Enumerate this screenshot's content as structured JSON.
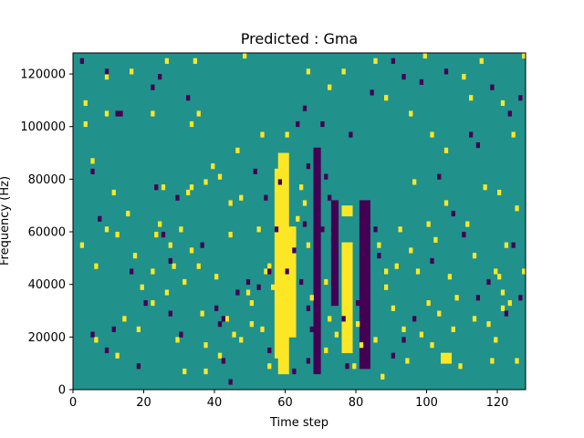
{
  "chart_data": {
    "type": "heatmap",
    "title": "Predicted : Gma",
    "xlabel": "Time step",
    "ylabel": "Frequency (Hz)",
    "xlim": [
      0,
      128
    ],
    "ylim": [
      0,
      128000
    ],
    "xticks": [
      0,
      20,
      40,
      60,
      80,
      100,
      120
    ],
    "yticks": [
      0,
      20000,
      40000,
      60000,
      80000,
      100000,
      120000
    ],
    "colormap": "viridis",
    "colors": {
      "low": "#440154",
      "mid": "#21918c",
      "high": "#fde725"
    },
    "background_value": "mid",
    "grid": false,
    "legend": "none",
    "n_time_steps": 128,
    "n_frequency_bins": 64,
    "freq_bin_hz": 2000,
    "high_band": [
      {
        "t0": 58,
        "t1": 61,
        "f0": 6000,
        "f1": 90000
      },
      {
        "t0": 57,
        "t1": 59,
        "f0": 14000,
        "f1": 84000
      },
      {
        "t0": 61,
        "t1": 63,
        "f0": 20000,
        "f1": 62000
      },
      {
        "t0": 76,
        "t1": 79,
        "f0": 14000,
        "f1": 56000
      },
      {
        "t0": 76,
        "t1": 79,
        "f0": 66000,
        "f1": 70000
      },
      {
        "t0": 104,
        "t1": 107,
        "f0": 10000,
        "f1": 14000
      }
    ],
    "low_band": [
      {
        "t0": 68,
        "t1": 70,
        "f0": 6000,
        "f1": 92000
      },
      {
        "t0": 73,
        "t1": 75,
        "f0": 32000,
        "f1": 72000
      },
      {
        "t0": 81,
        "t1": 84,
        "f0": 8000,
        "f1": 72000
      },
      {
        "t0": 82,
        "t1": 84,
        "f0": 30000,
        "f1": 48000
      }
    ],
    "high_cells": [
      [
        9,
        118000
      ],
      [
        9,
        104000
      ],
      [
        3,
        108000
      ],
      [
        3,
        100000
      ],
      [
        16,
        120000
      ],
      [
        22,
        104000
      ],
      [
        26,
        124000
      ],
      [
        33,
        100000
      ],
      [
        35,
        104000
      ],
      [
        34,
        124000
      ],
      [
        48,
        126000
      ],
      [
        46,
        90000
      ],
      [
        39,
        84000
      ],
      [
        41,
        80000
      ],
      [
        53,
        96000
      ],
      [
        60,
        96000
      ],
      [
        66,
        120000
      ],
      [
        72,
        114000
      ],
      [
        76,
        120000
      ],
      [
        85,
        124000
      ],
      [
        88,
        110000
      ],
      [
        95,
        104000
      ],
      [
        99,
        126000
      ],
      [
        101,
        96000
      ],
      [
        105,
        90000
      ],
      [
        110,
        118000
      ],
      [
        112,
        110000
      ],
      [
        115,
        124000
      ],
      [
        121,
        108000
      ],
      [
        124,
        96000
      ],
      [
        127,
        126000
      ],
      [
        5,
        86000
      ],
      [
        2,
        54000
      ],
      [
        12,
        58000
      ],
      [
        17,
        50000
      ],
      [
        22,
        44000
      ],
      [
        24,
        62000
      ],
      [
        27,
        54000
      ],
      [
        31,
        40000
      ],
      [
        33,
        52000
      ],
      [
        36,
        28000
      ],
      [
        40,
        42000
      ],
      [
        44,
        58000
      ],
      [
        47,
        18000
      ],
      [
        49,
        36000
      ],
      [
        50,
        32000
      ],
      [
        53,
        22000
      ],
      [
        55,
        46000
      ],
      [
        56,
        38000
      ],
      [
        50,
        24000
      ],
      [
        12,
        12000
      ],
      [
        14,
        26000
      ],
      [
        18,
        22000
      ],
      [
        22,
        32000
      ],
      [
        26,
        36000
      ],
      [
        29,
        18000
      ],
      [
        31,
        6000
      ],
      [
        37,
        16000
      ],
      [
        41,
        12000
      ],
      [
        37,
        78000
      ],
      [
        33,
        76000
      ],
      [
        44,
        70000
      ],
      [
        47,
        72000
      ],
      [
        52,
        60000
      ],
      [
        54,
        44000
      ],
      [
        64,
        76000
      ],
      [
        66,
        54000
      ],
      [
        67,
        34000
      ],
      [
        71,
        40000
      ],
      [
        72,
        26000
      ],
      [
        86,
        54000
      ],
      [
        88,
        38000
      ],
      [
        90,
        30000
      ],
      [
        93,
        22000
      ],
      [
        95,
        52000
      ],
      [
        97,
        44000
      ],
      [
        100,
        32000
      ],
      [
        103,
        28000
      ],
      [
        106,
        42000
      ],
      [
        108,
        34000
      ],
      [
        111,
        62000
      ],
      [
        113,
        50000
      ],
      [
        117,
        24000
      ],
      [
        119,
        18000
      ],
      [
        121,
        36000
      ],
      [
        123,
        32000
      ],
      [
        125,
        68000
      ],
      [
        127,
        44000
      ],
      [
        116,
        76000
      ],
      [
        120,
        74000
      ],
      [
        122,
        54000
      ],
      [
        105,
        70000
      ],
      [
        100,
        62000
      ],
      [
        96,
        78000
      ],
      [
        92,
        60000
      ],
      [
        88,
        44000
      ],
      [
        85,
        18000
      ],
      [
        79,
        8000
      ],
      [
        74,
        20000
      ],
      [
        71,
        14000
      ],
      [
        91,
        46000
      ],
      [
        102,
        56000
      ],
      [
        119,
        44000
      ],
      [
        120,
        42000
      ],
      [
        121,
        30000
      ],
      [
        125,
        10000
      ],
      [
        6,
        18000
      ],
      [
        6,
        46000
      ],
      [
        9,
        60000
      ],
      [
        11,
        74000
      ],
      [
        15,
        66000
      ],
      [
        19,
        38000
      ],
      [
        23,
        58000
      ],
      [
        25,
        76000
      ],
      [
        28,
        46000
      ],
      [
        30,
        60000
      ],
      [
        32,
        74000
      ],
      [
        35,
        46000
      ],
      [
        37,
        6000
      ],
      [
        43,
        26000
      ],
      [
        45,
        20000
      ],
      [
        55,
        8000
      ],
      [
        57,
        12000
      ],
      [
        62,
        26000
      ],
      [
        63,
        64000
      ],
      [
        65,
        70000
      ],
      [
        80,
        24000
      ],
      [
        81,
        16000
      ],
      [
        87,
        4000
      ],
      [
        94,
        10000
      ],
      [
        98,
        20000
      ],
      [
        101,
        16000
      ],
      [
        107,
        22000
      ],
      [
        109,
        8000
      ],
      [
        113,
        26000
      ],
      [
        118,
        10000
      ]
    ],
    "low_cells": [
      [
        2,
        124000
      ],
      [
        9,
        120000
      ],
      [
        5,
        82000
      ],
      [
        7,
        64000
      ],
      [
        22,
        114000
      ],
      [
        24,
        118000
      ],
      [
        32,
        110000
      ],
      [
        12,
        104000
      ],
      [
        13,
        104000
      ],
      [
        23,
        76000
      ],
      [
        29,
        72000
      ],
      [
        16,
        44000
      ],
      [
        25,
        58000
      ],
      [
        20,
        32000
      ],
      [
        27,
        48000
      ],
      [
        36,
        54000
      ],
      [
        40,
        30000
      ],
      [
        41,
        24000
      ],
      [
        42,
        26000
      ],
      [
        46,
        36000
      ],
      [
        49,
        40000
      ],
      [
        52,
        38000
      ],
      [
        55,
        44000
      ],
      [
        58,
        78000
      ],
      [
        57,
        60000
      ],
      [
        62,
        52000
      ],
      [
        64,
        40000
      ],
      [
        66,
        30000
      ],
      [
        67,
        22000
      ],
      [
        63,
        100000
      ],
      [
        65,
        106000
      ],
      [
        72,
        72000
      ],
      [
        74,
        34000
      ],
      [
        76,
        26000
      ],
      [
        85,
        60000
      ],
      [
        86,
        50000
      ],
      [
        90,
        12000
      ],
      [
        93,
        18000
      ],
      [
        96,
        26000
      ],
      [
        101,
        48000
      ],
      [
        103,
        80000
      ],
      [
        107,
        66000
      ],
      [
        110,
        58000
      ],
      [
        114,
        34000
      ],
      [
        117,
        40000
      ],
      [
        122,
        28000
      ],
      [
        124,
        54000
      ],
      [
        126,
        34000
      ],
      [
        5,
        20000
      ],
      [
        9,
        14000
      ],
      [
        11,
        22000
      ],
      [
        18,
        8000
      ],
      [
        27,
        28000
      ],
      [
        30,
        20000
      ],
      [
        42,
        10000
      ],
      [
        44,
        2000
      ],
      [
        51,
        82000
      ],
      [
        54,
        72000
      ],
      [
        60,
        44000
      ],
      [
        78,
        96000
      ],
      [
        84,
        112000
      ],
      [
        90,
        124000
      ],
      [
        93,
        118000
      ],
      [
        98,
        116000
      ],
      [
        105,
        120000
      ],
      [
        112,
        96000
      ],
      [
        114,
        92000
      ],
      [
        118,
        114000
      ],
      [
        123,
        104000
      ],
      [
        126,
        110000
      ],
      [
        70,
        60000
      ],
      [
        71,
        80000
      ],
      [
        65,
        62000
      ],
      [
        66,
        84000
      ],
      [
        70,
        100000
      ],
      [
        55,
        14000
      ],
      [
        62,
        6000
      ],
      [
        66,
        10000
      ],
      [
        73,
        56000
      ],
      [
        80,
        32000
      ],
      [
        77,
        8000
      ]
    ]
  }
}
